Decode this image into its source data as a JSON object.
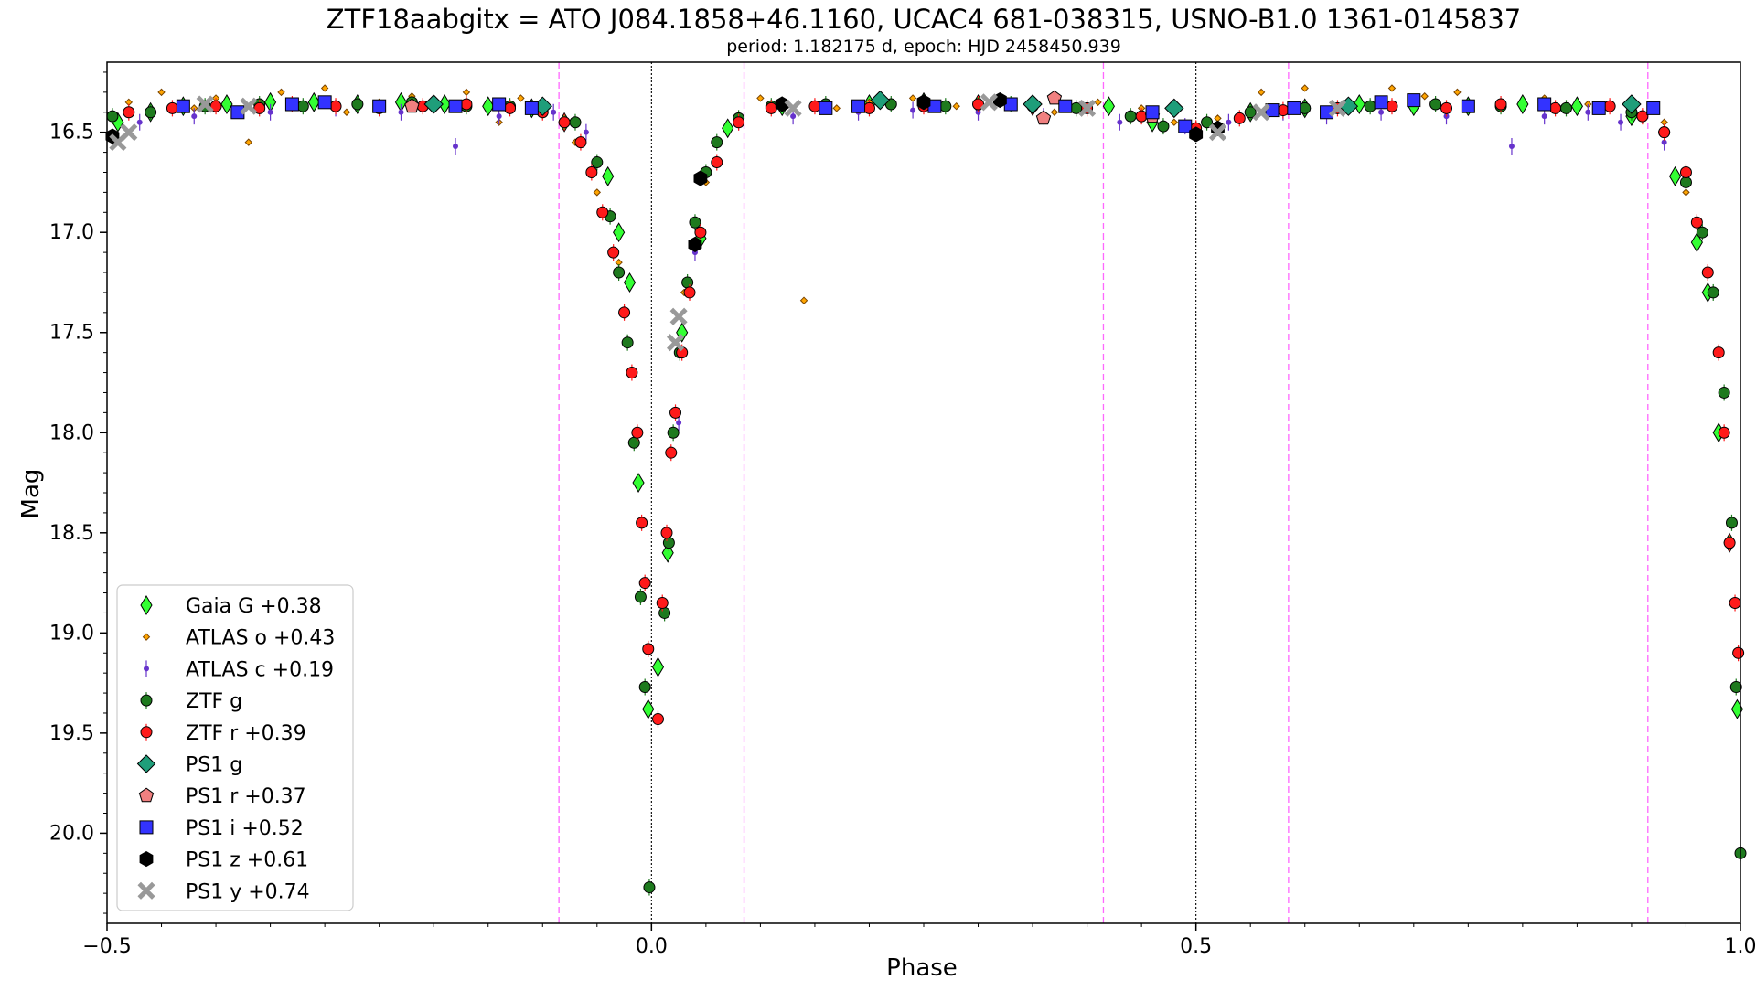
{
  "chart_data": {
    "type": "scatter",
    "title": "ZTF18aabgitx = ATO J084.1858+46.1160, UCAC4 681-038315, USNO-B1.0 1361-0145837",
    "subtitle": "period: 1.182175 d, epoch: HJD 2458450.939",
    "xlabel": "Phase",
    "ylabel": "Mag",
    "xlim": [
      -0.5,
      1.0
    ],
    "ylim": [
      20.45,
      16.15
    ],
    "y_inverted": true,
    "xticks": [
      -0.5,
      0.0,
      0.5,
      1.0
    ],
    "xtick_labels": [
      "−0.5",
      "0.0",
      "0.5",
      "1.0"
    ],
    "yticks": [
      16.5,
      17.0,
      17.5,
      18.0,
      18.5,
      19.0,
      19.5,
      20.0
    ],
    "ytick_labels": [
      "16.5",
      "17.0",
      "17.5",
      "18.0",
      "18.5",
      "19.0",
      "19.5",
      "20.0"
    ],
    "grid": false,
    "legend_position": "lower-left",
    "vlines_black_dotted": [
      0.0,
      0.5
    ],
    "vlines_magenta_dashed": [
      -0.085,
      0.085,
      0.415,
      0.585,
      0.915
    ],
    "colors": {
      "gaia_g": "#33ff33",
      "atlas_o": "#ffa500",
      "atlas_c": "#6633cc",
      "ztf_g": "#1e7a1e",
      "ztf_r": "#ff1a1a",
      "ps1_g": "#1f9e7a",
      "ps1_r": "#f08080",
      "ps1_i": "#3333ff",
      "ps1_z": "#000000",
      "ps1_y": "#999999",
      "vline_black": "#000000",
      "vline_magenta": "#ff66ff"
    },
    "series": [
      {
        "name": "Gaia G +0.38",
        "marker": "thin-diamond",
        "color_key": "gaia_g",
        "x": [
          -0.49,
          -0.46,
          -0.43,
          -0.39,
          -0.35,
          -0.31,
          -0.27,
          -0.23,
          -0.19,
          -0.15,
          -0.11,
          -0.08,
          -0.04,
          -0.03,
          -0.02,
          -0.012,
          -0.003,
          0.006,
          0.015,
          0.028,
          0.045,
          0.07,
          0.12,
          0.2,
          0.25,
          0.3,
          0.35,
          0.42,
          0.46,
          0.55,
          0.6,
          0.65,
          0.7,
          0.75,
          0.8,
          0.85,
          0.9,
          0.94,
          0.96,
          0.97,
          0.98,
          0.99,
          0.997
        ],
        "y": [
          16.45,
          16.4,
          16.37,
          16.36,
          16.35,
          16.35,
          16.36,
          16.35,
          16.36,
          16.37,
          16.38,
          16.45,
          16.72,
          17.0,
          17.25,
          18.25,
          19.38,
          19.17,
          18.6,
          17.5,
          17.03,
          16.48,
          16.37,
          16.36,
          16.35,
          16.36,
          16.37,
          16.37,
          16.45,
          16.4,
          16.38,
          16.36,
          16.37,
          16.37,
          16.36,
          16.37,
          16.42,
          16.72,
          17.05,
          17.3,
          18.0,
          18.55,
          19.38
        ]
      },
      {
        "name": "ATLAS o +0.43",
        "marker": "small-diamond",
        "color_key": "atlas_o",
        "x": [
          -0.48,
          -0.45,
          -0.42,
          -0.4,
          -0.37,
          -0.34,
          -0.3,
          -0.28,
          -0.25,
          -0.22,
          -0.2,
          -0.17,
          -0.14,
          -0.12,
          -0.1,
          -0.07,
          -0.05,
          -0.03,
          0.03,
          0.05,
          0.08,
          0.1,
          0.14,
          0.17,
          0.2,
          0.24,
          0.28,
          0.33,
          0.37,
          0.41,
          0.45,
          0.48,
          0.52,
          0.56,
          0.6,
          0.64,
          0.68,
          0.71,
          0.74,
          0.78,
          0.82,
          0.86,
          0.9,
          0.93,
          0.95
        ],
        "y": [
          16.35,
          16.3,
          16.38,
          16.33,
          16.55,
          16.3,
          16.28,
          16.4,
          16.35,
          16.32,
          16.38,
          16.3,
          16.45,
          16.33,
          16.38,
          16.55,
          16.8,
          17.15,
          17.3,
          16.75,
          16.42,
          16.33,
          17.34,
          16.38,
          16.35,
          16.33,
          16.37,
          16.36,
          16.4,
          16.35,
          16.38,
          16.45,
          16.43,
          16.3,
          16.28,
          16.35,
          16.28,
          16.32,
          16.3,
          16.35,
          16.33,
          16.36,
          16.38,
          16.45,
          16.8
        ]
      },
      {
        "name": "ATLAS c +0.19",
        "marker": "small-circle",
        "color_key": "atlas_c",
        "x": [
          -0.47,
          -0.42,
          -0.35,
          -0.29,
          -0.23,
          -0.18,
          -0.14,
          -0.09,
          -0.06,
          0.025,
          0.04,
          0.08,
          0.13,
          0.19,
          0.24,
          0.3,
          0.36,
          0.43,
          0.49,
          0.53,
          0.58,
          0.62,
          0.67,
          0.73,
          0.79,
          0.82,
          0.86,
          0.89,
          0.93
        ],
        "y": [
          16.45,
          16.42,
          16.4,
          16.38,
          16.4,
          16.57,
          16.42,
          16.4,
          16.5,
          17.95,
          17.1,
          16.45,
          16.42,
          16.4,
          16.39,
          16.4,
          16.42,
          16.45,
          16.47,
          16.45,
          16.4,
          16.42,
          16.4,
          16.42,
          16.57,
          16.42,
          16.4,
          16.45,
          16.55
        ]
      },
      {
        "name": "ZTF g",
        "marker": "circle",
        "color_key": "ztf_g",
        "x": [
          -0.495,
          -0.46,
          -0.41,
          -0.36,
          -0.32,
          -0.27,
          -0.22,
          -0.17,
          -0.13,
          -0.1,
          -0.07,
          -0.05,
          -0.038,
          -0.03,
          -0.022,
          -0.016,
          -0.01,
          -0.006,
          -0.002,
          0.012,
          0.016,
          0.02,
          0.026,
          0.033,
          0.04,
          0.05,
          0.06,
          0.08,
          0.11,
          0.16,
          0.22,
          0.27,
          0.33,
          0.39,
          0.44,
          0.47,
          0.51,
          0.55,
          0.6,
          0.66,
          0.72,
          0.78,
          0.84,
          0.9,
          0.93,
          0.95,
          0.965,
          0.975,
          0.985,
          0.992,
          0.996,
          1.0
        ],
        "y": [
          16.42,
          16.4,
          16.37,
          16.36,
          16.37,
          16.36,
          16.35,
          16.37,
          16.37,
          16.38,
          16.45,
          16.65,
          16.92,
          17.2,
          17.55,
          18.05,
          18.82,
          19.27,
          20.27,
          18.9,
          18.55,
          18.0,
          17.6,
          17.25,
          16.95,
          16.7,
          16.55,
          16.43,
          16.37,
          16.36,
          16.36,
          16.37,
          16.36,
          16.38,
          16.42,
          16.47,
          16.45,
          16.4,
          16.38,
          16.37,
          16.36,
          16.37,
          16.38,
          16.4,
          16.5,
          16.75,
          17.0,
          17.3,
          17.8,
          18.45,
          19.27,
          20.1
        ]
      },
      {
        "name": "ZTF r +0.39",
        "marker": "circle",
        "color_key": "ztf_r",
        "x": [
          -0.48,
          -0.44,
          -0.4,
          -0.36,
          -0.33,
          -0.29,
          -0.25,
          -0.21,
          -0.17,
          -0.13,
          -0.1,
          -0.08,
          -0.065,
          -0.055,
          -0.045,
          -0.035,
          -0.025,
          -0.018,
          -0.013,
          -0.009,
          -0.006,
          -0.003,
          0.006,
          0.01,
          0.014,
          0.018,
          0.022,
          0.028,
          0.035,
          0.045,
          0.06,
          0.08,
          0.11,
          0.15,
          0.2,
          0.25,
          0.3,
          0.35,
          0.4,
          0.45,
          0.5,
          0.54,
          0.58,
          0.63,
          0.68,
          0.73,
          0.78,
          0.83,
          0.88,
          0.91,
          0.93,
          0.95,
          0.96,
          0.97,
          0.98,
          0.985,
          0.99,
          0.995,
          0.998
        ],
        "y": [
          16.4,
          16.38,
          16.37,
          16.38,
          16.36,
          16.37,
          16.38,
          16.37,
          16.36,
          16.38,
          16.4,
          16.45,
          16.55,
          16.7,
          16.9,
          17.1,
          17.4,
          17.7,
          18.0,
          18.45,
          18.75,
          19.08,
          19.43,
          18.85,
          18.5,
          18.1,
          17.9,
          17.6,
          17.3,
          17.0,
          16.65,
          16.45,
          16.38,
          16.37,
          16.38,
          16.37,
          16.36,
          16.37,
          16.38,
          16.42,
          16.48,
          16.43,
          16.39,
          16.38,
          16.37,
          16.38,
          16.36,
          16.38,
          16.37,
          16.42,
          16.5,
          16.7,
          16.95,
          17.2,
          17.6,
          18.0,
          18.55,
          18.85,
          19.1
        ]
      },
      {
        "name": "PS1 g",
        "marker": "large-diamond",
        "color_key": "ps1_g",
        "x": [
          -0.2,
          -0.1,
          0.21,
          0.35,
          0.48,
          0.64,
          0.9
        ],
        "y": [
          16.36,
          16.37,
          16.34,
          16.36,
          16.38,
          16.37,
          16.36
        ]
      },
      {
        "name": "PS1 r +0.37",
        "marker": "pentagon",
        "color_key": "ps1_r",
        "x": [
          -0.22,
          0.36,
          0.37,
          0.46
        ],
        "y": [
          16.37,
          16.43,
          16.33,
          16.42
        ]
      },
      {
        "name": "PS1 i +0.52",
        "marker": "square",
        "color_key": "ps1_i",
        "x": [
          -0.43,
          -0.38,
          -0.33,
          -0.3,
          -0.25,
          -0.18,
          -0.14,
          -0.11,
          0.16,
          0.19,
          0.26,
          0.33,
          0.38,
          0.46,
          0.49,
          0.57,
          0.59,
          0.62,
          0.67,
          0.7,
          0.75,
          0.82,
          0.87,
          0.92
        ],
        "y": [
          16.37,
          16.4,
          16.36,
          16.35,
          16.37,
          16.37,
          16.36,
          16.38,
          16.38,
          16.37,
          16.37,
          16.36,
          16.37,
          16.4,
          16.47,
          16.39,
          16.38,
          16.4,
          16.35,
          16.34,
          16.37,
          16.36,
          16.38,
          16.38
        ]
      },
      {
        "name": "PS1 z +0.61",
        "marker": "hexagon",
        "color_key": "ps1_z",
        "x": [
          -0.495,
          0.04,
          0.045,
          0.12,
          0.25,
          0.32,
          0.5,
          0.52
        ],
        "y": [
          16.52,
          17.06,
          16.73,
          16.36,
          16.35,
          16.34,
          16.51,
          16.48
        ]
      },
      {
        "name": "PS1 y +0.74",
        "marker": "thick-x",
        "color_key": "ps1_y",
        "x": [
          -0.49,
          -0.48,
          -0.41,
          -0.37,
          0.022,
          0.025,
          0.13,
          0.31,
          0.4,
          0.52,
          0.56,
          0.63
        ],
        "y": [
          16.55,
          16.5,
          16.36,
          16.37,
          17.55,
          17.42,
          16.38,
          16.35,
          16.38,
          16.5,
          16.4,
          16.38
        ]
      }
    ]
  }
}
